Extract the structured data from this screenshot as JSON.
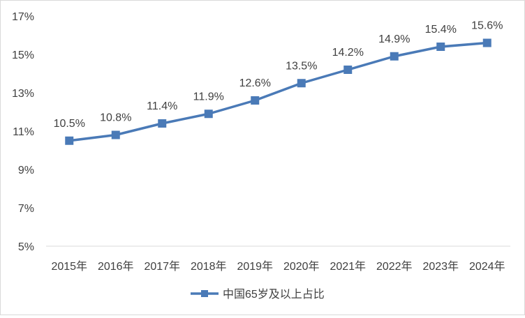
{
  "chart_data": {
    "type": "line",
    "categories": [
      "2015年",
      "2016年",
      "2017年",
      "2018年",
      "2019年",
      "2020年",
      "2021年",
      "2022年",
      "2023年",
      "2024年"
    ],
    "series": [
      {
        "name": "中国65岁及以上占比",
        "values": [
          10.5,
          10.8,
          11.4,
          11.9,
          12.6,
          13.5,
          14.2,
          14.9,
          15.4,
          15.6
        ],
        "data_labels": [
          "10.5%",
          "10.8%",
          "11.4%",
          "11.9%",
          "12.6%",
          "13.5%",
          "14.2%",
          "14.9%",
          "15.4%",
          "15.6%"
        ]
      }
    ],
    "ylim": [
      5,
      17
    ],
    "yticks": [
      5,
      7,
      9,
      11,
      13,
      15,
      17
    ],
    "ytick_labels": [
      "5%",
      "7%",
      "9%",
      "11%",
      "13%",
      "15%",
      "17%"
    ],
    "title": "",
    "xlabel": "",
    "ylabel": "",
    "grid": false,
    "legend_position": "bottom",
    "line_color": "#4a7ab7",
    "marker": "square"
  }
}
